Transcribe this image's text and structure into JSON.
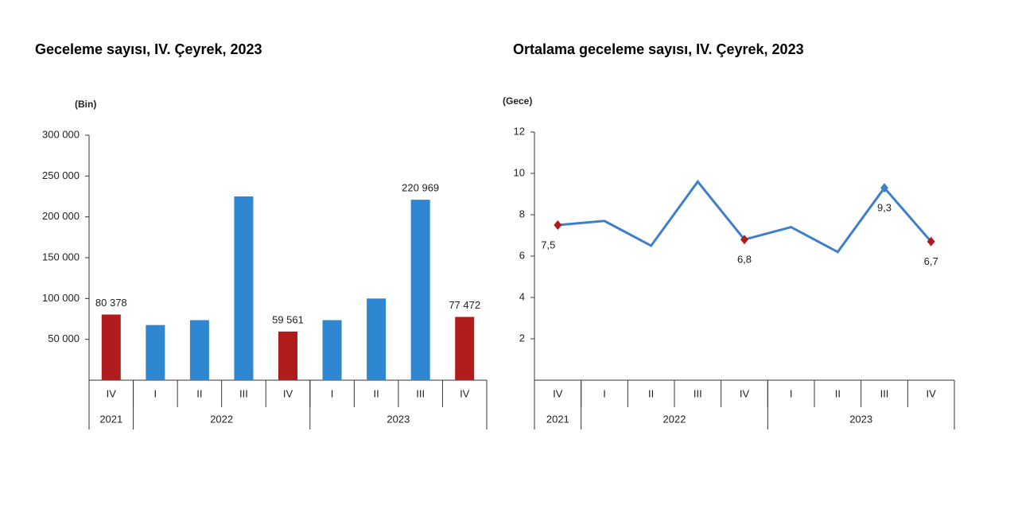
{
  "chart_data": [
    {
      "type": "bar",
      "title": "Geceleme sayısı, IV. Çeyrek, 2023",
      "unit": "(Bin)",
      "categories": [
        "IV",
        "I",
        "II",
        "III",
        "IV",
        "I",
        "II",
        "III",
        "IV"
      ],
      "groups": [
        {
          "label": "2021",
          "span": 1
        },
        {
          "label": "2022",
          "span": 4
        },
        {
          "label": "2023",
          "span": 4
        }
      ],
      "values": [
        80378,
        67500,
        73500,
        225000,
        59561,
        73500,
        100000,
        220969,
        77472
      ],
      "value_labels": [
        "80 378",
        null,
        null,
        null,
        "59 561",
        null,
        null,
        "220 969",
        "77 472"
      ],
      "colors": [
        "#b01c1c",
        "#2f86d1",
        "#2f86d1",
        "#2f86d1",
        "#b01c1c",
        "#2f86d1",
        "#2f86d1",
        "#2f86d1",
        "#b01c1c"
      ],
      "ylim": [
        0,
        300000
      ],
      "yticks": [
        {
          "value": 50000,
          "label": "50 000"
        },
        {
          "value": 100000,
          "label": "100 000"
        },
        {
          "value": 150000,
          "label": "150 000"
        },
        {
          "value": 200000,
          "label": "200 000"
        },
        {
          "value": 250000,
          "label": "250 000"
        },
        {
          "value": 300000,
          "label": "300 000"
        }
      ]
    },
    {
      "type": "line",
      "title": "Ortalama geceleme sayısı, IV. Çeyrek, 2023",
      "unit": "(Gece)",
      "categories": [
        "IV",
        "I",
        "II",
        "III",
        "IV",
        "I",
        "II",
        "III",
        "IV"
      ],
      "groups": [
        {
          "label": "2021",
          "span": 1
        },
        {
          "label": "2022",
          "span": 4
        },
        {
          "label": "2023",
          "span": 4
        }
      ],
      "values": [
        7.5,
        7.7,
        6.5,
        9.6,
        6.8,
        7.4,
        6.2,
        9.3,
        6.7
      ],
      "value_labels": [
        "7,5",
        null,
        null,
        null,
        "6,8",
        null,
        null,
        "9,3",
        "6,7"
      ],
      "color": "#3f7fc9",
      "marker_colors": [
        "#b01c1c",
        null,
        null,
        null,
        "#b01c1c",
        null,
        null,
        "#3f7fc9",
        "#b01c1c"
      ],
      "ylim": [
        0,
        12
      ],
      "yticks": [
        2,
        4,
        6,
        8,
        10,
        12
      ]
    }
  ]
}
